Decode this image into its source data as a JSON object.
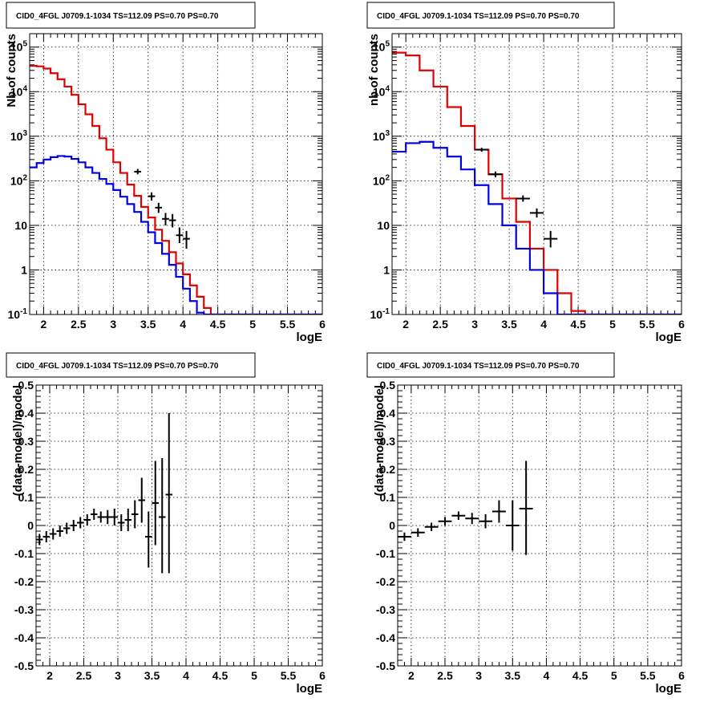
{
  "colors": {
    "data": "#000000",
    "model_total": "#e00000",
    "model_source": "#0000e0"
  },
  "chart_data": [
    {
      "type": "histogram",
      "title": "CID0_4FGL J0709.1-1034 TS=112.09 PS=0.70 PS=0.70",
      "xlabel": "logE",
      "ylabel": "Nb of counts",
      "xlim": [
        1.8,
        6.0
      ],
      "ylim": [
        0.1,
        200000
      ],
      "yscale": "log",
      "grid": true,
      "x_ticks": [
        "2",
        "2.5",
        "3",
        "3.5",
        "4",
        "4.5",
        "5",
        "5.5",
        "6"
      ],
      "y_ticks": [
        "10^-1",
        "1",
        "10",
        "10^2",
        "10^3",
        "10^4",
        "10^5"
      ],
      "bin_edges": [
        1.8,
        1.9,
        2.0,
        2.1,
        2.2,
        2.3,
        2.4,
        2.5,
        2.6,
        2.7,
        2.8,
        2.9,
        3.0,
        3.1,
        3.2,
        3.3,
        3.4,
        3.5,
        3.6,
        3.7,
        3.8,
        3.9,
        4.0,
        4.1,
        4.2,
        4.3,
        4.4,
        4.5,
        4.6,
        4.7,
        4.8,
        4.9,
        5.0,
        5.1,
        5.2,
        5.3,
        5.4,
        5.5,
        5.6,
        5.7,
        5.8,
        5.9,
        6.0
      ],
      "series": [
        {
          "role": "model_total",
          "values": [
            38000,
            37000,
            33000,
            26000,
            19000,
            13000,
            8500,
            5200,
            3100,
            1700,
            900,
            500,
            260,
            150,
            82,
            46,
            26,
            15,
            8,
            4.5,
            2.5,
            1.4,
            0.8,
            0.45,
            0.25,
            0.14,
            0.1,
            0.1,
            0.1,
            0.1,
            0.1,
            0.1,
            0.1,
            0.1,
            0.1,
            0.1,
            0.1,
            0.1,
            0.1,
            0.1,
            0.1,
            0.1
          ]
        },
        {
          "role": "model_source",
          "values": [
            200,
            250,
            300,
            340,
            360,
            350,
            310,
            260,
            200,
            150,
            110,
            85,
            62,
            44,
            30,
            20,
            12,
            7,
            4,
            2.3,
            1.3,
            0.7,
            0.38,
            0.2,
            0.11,
            0.1,
            0.1,
            0.1,
            0.1,
            0.1,
            0.1,
            0.1,
            0.1,
            0.1,
            0.1,
            0.1,
            0.1,
            0.1,
            0.1,
            0.1,
            0.1,
            0.1
          ]
        },
        {
          "role": "data",
          "points": [
            {
              "x": 3.35,
              "y": 160,
              "ylo": 140,
              "yhi": 185
            },
            {
              "x": 3.55,
              "y": 45,
              "ylo": 36,
              "yhi": 55
            },
            {
              "x": 3.65,
              "y": 25,
              "ylo": 19,
              "yhi": 32
            },
            {
              "x": 3.75,
              "y": 14,
              "ylo": 10,
              "yhi": 19
            },
            {
              "x": 3.85,
              "y": 13,
              "ylo": 9,
              "yhi": 18
            },
            {
              "x": 3.95,
              "y": 6,
              "ylo": 4,
              "yhi": 9
            },
            {
              "x": 4.05,
              "y": 5,
              "ylo": 3,
              "yhi": 7.5
            }
          ]
        }
      ]
    },
    {
      "type": "histogram",
      "title": "CID0_4FGL J0709.1-1034 TS=112.09 PS=0.70 PS=0.70",
      "xlabel": "logE",
      "ylabel": "nb of counts",
      "xlim": [
        1.8,
        6.0
      ],
      "ylim": [
        0.1,
        200000
      ],
      "yscale": "log",
      "grid": true,
      "x_ticks": [
        "2",
        "2.5",
        "3",
        "3.5",
        "4",
        "4.5",
        "5",
        "5.5",
        "6"
      ],
      "y_ticks": [
        "10^-1",
        "1",
        "10",
        "10^2",
        "10^3",
        "10^4",
        "10^5"
      ],
      "bin_edges": [
        1.8,
        2.0,
        2.2,
        2.4,
        2.6,
        2.8,
        3.0,
        3.2,
        3.4,
        3.6,
        3.8,
        4.0,
        4.2,
        4.4,
        4.6,
        4.8,
        5.0,
        5.2,
        5.4,
        5.6,
        5.8,
        6.0
      ],
      "series": [
        {
          "role": "model_total",
          "values": [
            75000,
            65000,
            30000,
            13000,
            4500,
            1700,
            500,
            140,
            40,
            12,
            3,
            1,
            0.3,
            0.12,
            0.1,
            0.1,
            0.1,
            0.1,
            0.1,
            0.1,
            0.1
          ]
        },
        {
          "role": "model_source",
          "values": [
            450,
            700,
            750,
            550,
            350,
            180,
            80,
            30,
            10,
            3,
            1,
            0.3,
            0.1,
            0.1,
            0.1,
            0.1,
            0.1,
            0.1,
            0.1,
            0.1,
            0.1
          ]
        },
        {
          "role": "data",
          "points": [
            {
              "x": 3.1,
              "y": 500,
              "ylo": 450,
              "yhi": 550
            },
            {
              "x": 3.3,
              "y": 140,
              "ylo": 120,
              "yhi": 162
            },
            {
              "x": 3.7,
              "y": 40,
              "ylo": 34,
              "yhi": 47
            },
            {
              "x": 3.9,
              "y": 19,
              "ylo": 15,
              "yhi": 24
            },
            {
              "x": 4.1,
              "y": 5,
              "ylo": 3.2,
              "yhi": 7.5
            }
          ]
        }
      ]
    },
    {
      "type": "scatter",
      "title": "CID0_4FGL J0709.1-1034 TS=112.09 PS=0.70 PS=0.70",
      "xlabel": "logE",
      "ylabel": "(data-model)/model",
      "xlim": [
        1.8,
        6.0
      ],
      "ylim": [
        -0.5,
        0.5
      ],
      "grid": true,
      "x_ticks": [
        "2",
        "2.5",
        "3",
        "3.5",
        "4",
        "4.5",
        "5",
        "5.5",
        "6"
      ],
      "y_ticks": [
        "-0.5",
        "-0.4",
        "-0.3",
        "-0.2",
        "-0.1",
        "0",
        "0.1",
        "0.2",
        "0.3",
        "0.4",
        "0.5"
      ],
      "x_halfwidth": 0.05,
      "points": [
        {
          "x": 1.85,
          "y": -0.05,
          "ylo": -0.07,
          "yhi": -0.03
        },
        {
          "x": 1.95,
          "y": -0.04,
          "ylo": -0.06,
          "yhi": -0.02
        },
        {
          "x": 2.05,
          "y": -0.03,
          "ylo": -0.05,
          "yhi": -0.01
        },
        {
          "x": 2.15,
          "y": -0.02,
          "ylo": -0.04,
          "yhi": 0.0
        },
        {
          "x": 2.25,
          "y": -0.01,
          "ylo": -0.03,
          "yhi": 0.01
        },
        {
          "x": 2.35,
          "y": 0.0,
          "ylo": -0.02,
          "yhi": 0.02
        },
        {
          "x": 2.45,
          "y": 0.01,
          "ylo": -0.01,
          "yhi": 0.03
        },
        {
          "x": 2.55,
          "y": 0.02,
          "ylo": 0.0,
          "yhi": 0.04
        },
        {
          "x": 2.65,
          "y": 0.04,
          "ylo": 0.02,
          "yhi": 0.06
        },
        {
          "x": 2.75,
          "y": 0.03,
          "ylo": 0.01,
          "yhi": 0.05
        },
        {
          "x": 2.85,
          "y": 0.03,
          "ylo": 0.005,
          "yhi": 0.055
        },
        {
          "x": 2.95,
          "y": 0.03,
          "ylo": 0.0,
          "yhi": 0.06
        },
        {
          "x": 3.05,
          "y": 0.01,
          "ylo": -0.02,
          "yhi": 0.04
        },
        {
          "x": 3.15,
          "y": 0.02,
          "ylo": -0.02,
          "yhi": 0.06
        },
        {
          "x": 3.25,
          "y": 0.04,
          "ylo": -0.01,
          "yhi": 0.09
        },
        {
          "x": 3.35,
          "y": 0.09,
          "ylo": 0.01,
          "yhi": 0.17
        },
        {
          "x": 3.45,
          "y": -0.04,
          "ylo": -0.15,
          "yhi": 0.05
        },
        {
          "x": 3.55,
          "y": 0.08,
          "ylo": -0.07,
          "yhi": 0.23
        },
        {
          "x": 3.65,
          "y": 0.03,
          "ylo": -0.17,
          "yhi": 0.24
        },
        {
          "x": 3.75,
          "y": 0.11,
          "ylo": -0.17,
          "yhi": 0.4
        }
      ]
    },
    {
      "type": "scatter",
      "title": "CID0_4FGL J0709.1-1034 TS=112.09 PS=0.70 PS=0.70",
      "xlabel": "logE",
      "ylabel": "(data-model)/model",
      "xlim": [
        1.8,
        6.0
      ],
      "ylim": [
        -0.5,
        0.5
      ],
      "grid": true,
      "x_ticks": [
        "2",
        "2.5",
        "3",
        "3.5",
        "4",
        "4.5",
        "5",
        "5.5",
        "6"
      ],
      "y_ticks": [
        "-0.5",
        "-0.4",
        "-0.3",
        "-0.2",
        "-0.1",
        "0",
        "0.1",
        "0.2",
        "0.3",
        "0.4",
        "0.5"
      ],
      "x_halfwidth": 0.1,
      "points": [
        {
          "x": 1.9,
          "y": -0.04,
          "ylo": -0.055,
          "yhi": -0.025
        },
        {
          "x": 2.1,
          "y": -0.025,
          "ylo": -0.04,
          "yhi": -0.01
        },
        {
          "x": 2.3,
          "y": -0.005,
          "ylo": -0.02,
          "yhi": 0.01
        },
        {
          "x": 2.5,
          "y": 0.015,
          "ylo": 0.0,
          "yhi": 0.03
        },
        {
          "x": 2.7,
          "y": 0.035,
          "ylo": 0.02,
          "yhi": 0.05
        },
        {
          "x": 2.9,
          "y": 0.025,
          "ylo": 0.005,
          "yhi": 0.045
        },
        {
          "x": 3.1,
          "y": 0.015,
          "ylo": -0.01,
          "yhi": 0.04
        },
        {
          "x": 3.3,
          "y": 0.05,
          "ylo": 0.01,
          "yhi": 0.09
        },
        {
          "x": 3.5,
          "y": 0.0,
          "ylo": -0.09,
          "yhi": 0.09
        },
        {
          "x": 3.7,
          "y": 0.06,
          "ylo": -0.105,
          "yhi": 0.23
        }
      ]
    }
  ]
}
